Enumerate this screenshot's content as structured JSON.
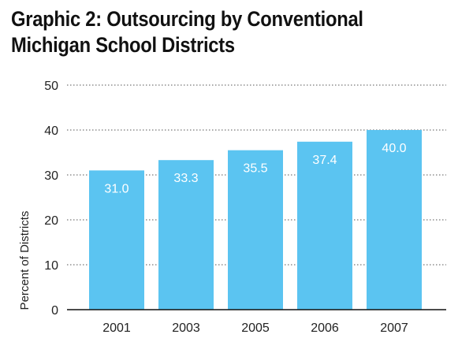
{
  "chart_data": {
    "type": "bar",
    "title": "Graphic 2: Outsourcing by Conventional\nMichigan School Districts",
    "xlabel": "",
    "ylabel": "Percent of Districts",
    "categories": [
      "2001",
      "2003",
      "2005",
      "2006",
      "2007"
    ],
    "values": [
      31.0,
      33.3,
      35.5,
      37.4,
      40.0
    ],
    "value_labels": [
      "31.0",
      "33.3",
      "35.5",
      "37.4",
      "40.0"
    ],
    "ylim": [
      0,
      50
    ],
    "yticks": [
      0,
      10,
      20,
      30,
      40,
      50
    ],
    "grid": true,
    "legend": "none",
    "colors": {
      "bar": "#5bc4f1",
      "grid": "#777777",
      "axis": "#111111"
    }
  }
}
